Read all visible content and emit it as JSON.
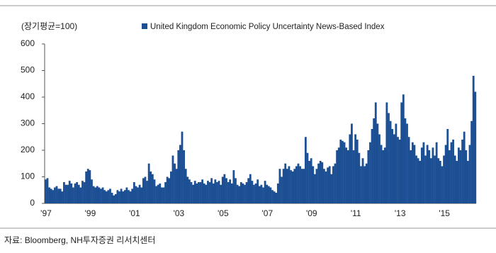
{
  "chart_data": {
    "type": "bar",
    "unit_label": "(장기평균=100)",
    "source": "자료: Bloomberg, NH투자증권 리서치센터",
    "series": [
      {
        "name": "United Kingdom Economic Policy Uncertainty News-Based Index",
        "color": "#1c4f93",
        "values": [
          90,
          95,
          60,
          55,
          50,
          60,
          65,
          55,
          55,
          45,
          80,
          70,
          70,
          85,
          75,
          60,
          75,
          80,
          70,
          60,
          85,
          80,
          120,
          130,
          125,
          90,
          65,
          60,
          65,
          60,
          55,
          60,
          50,
          45,
          50,
          55,
          40,
          30,
          35,
          50,
          45,
          55,
          45,
          50,
          60,
          50,
          45,
          55,
          80,
          65,
          60,
          70,
          60,
          95,
          100,
          85,
          150,
          120,
          110,
          90,
          65,
          70,
          75,
          60,
          60,
          80,
          100,
          95,
          120,
          180,
          150,
          130,
          200,
          220,
          270,
          200,
          130,
          100,
          90,
          80,
          70,
          85,
          75,
          80,
          80,
          90,
          75,
          70,
          85,
          80,
          95,
          75,
          90,
          80,
          85,
          70,
          100,
          110,
          95,
          80,
          90,
          75,
          125,
          95,
          70,
          65,
          80,
          75,
          70,
          80,
          95,
          110,
          85,
          70,
          75,
          90,
          65,
          70,
          60,
          85,
          70,
          65,
          60,
          50,
          45,
          40,
          75,
          130,
          100,
          130,
          150,
          130,
          140,
          125,
          120,
          130,
          140,
          150,
          140,
          130,
          130,
          250,
          190,
          160,
          170,
          140,
          110,
          130,
          150,
          160,
          155,
          130,
          120,
          135,
          140,
          110,
          140,
          150,
          200,
          210,
          240,
          235,
          230,
          210,
          200,
          260,
          300,
          200,
          260,
          240,
          190,
          140,
          170,
          140,
          150,
          200,
          230,
          280,
          320,
          380,
          300,
          260,
          220,
          200,
          210,
          380,
          340,
          310,
          280,
          260,
          300,
          250,
          240,
          380,
          410,
          320,
          300,
          250,
          200,
          230,
          220,
          180,
          170,
          160,
          210,
          230,
          180,
          220,
          200,
          170,
          210,
          180,
          230,
          170,
          160,
          140,
          180,
          220,
          280,
          200,
          230,
          240,
          180,
          160,
          210,
          200,
          240,
          270,
          200,
          160,
          220,
          310,
          480,
          420
        ]
      }
    ],
    "categories": [
      "'97",
      null,
      null,
      null,
      null,
      null,
      null,
      null,
      null,
      null,
      null,
      null,
      null,
      null,
      null,
      null,
      null,
      null,
      null,
      null,
      null,
      null,
      null,
      null,
      "'99",
      null,
      null,
      null,
      null,
      null,
      null,
      null,
      null,
      null,
      null,
      null,
      null,
      null,
      null,
      null,
      null,
      null,
      null,
      null,
      null,
      null,
      null,
      null,
      "'01",
      null,
      null,
      null,
      null,
      null,
      null,
      null,
      null,
      null,
      null,
      null,
      null,
      null,
      null,
      null,
      null,
      null,
      null,
      null,
      null,
      null,
      null,
      null,
      "'03",
      null,
      null,
      null,
      null,
      null,
      null,
      null,
      null,
      null,
      null,
      null,
      null,
      null,
      null,
      null,
      null,
      null,
      null,
      null,
      null,
      null,
      null,
      null,
      "'05",
      null,
      null,
      null,
      null,
      null,
      null,
      null,
      null,
      null,
      null,
      null,
      null,
      null,
      null,
      null,
      null,
      null,
      null,
      null,
      null,
      null,
      null,
      null,
      "'07",
      null,
      null,
      null,
      null,
      null,
      null,
      null,
      null,
      null,
      null,
      null,
      null,
      null,
      null,
      null,
      null,
      null,
      null,
      null,
      null,
      null,
      null,
      null,
      "'09",
      null,
      null,
      null,
      null,
      null,
      null,
      null,
      null,
      null,
      null,
      null,
      null,
      null,
      null,
      null,
      null,
      null,
      null,
      null,
      null,
      null,
      null,
      null,
      "'11",
      null,
      null,
      null,
      null,
      null,
      null,
      null,
      null,
      null,
      null,
      null,
      null,
      null,
      null,
      null,
      null,
      null,
      null,
      null,
      null,
      null,
      null,
      null,
      "'13",
      null,
      null,
      null,
      null,
      null,
      null,
      null,
      null,
      null,
      null,
      null,
      null,
      null,
      null,
      null,
      null,
      null,
      null,
      null,
      null,
      null,
      null,
      null,
      "'15",
      null,
      null,
      null,
      null,
      null,
      null,
      null,
      null,
      null,
      null,
      null,
      null,
      null,
      null,
      null,
      null,
      null
    ],
    "ylim": [
      0,
      600
    ],
    "yticks": [
      0,
      100,
      200,
      300,
      400,
      500,
      600
    ],
    "grid": false
  }
}
